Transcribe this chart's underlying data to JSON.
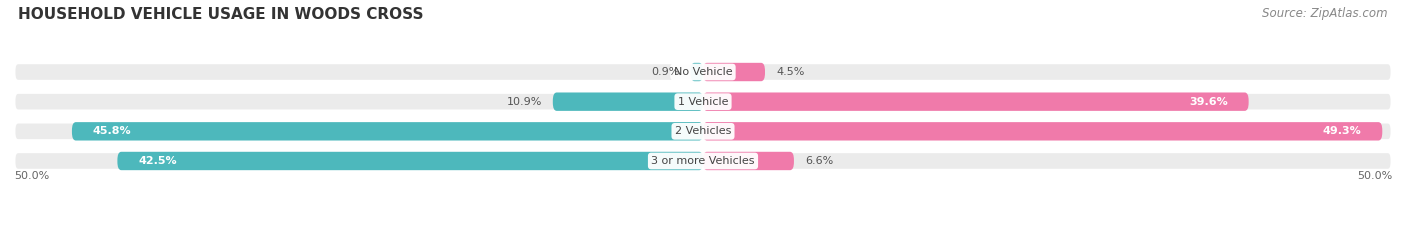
{
  "title": "HOUSEHOLD VEHICLE USAGE IN WOODS CROSS",
  "source": "Source: ZipAtlas.com",
  "categories": [
    "No Vehicle",
    "1 Vehicle",
    "2 Vehicles",
    "3 or more Vehicles"
  ],
  "owner_values": [
    0.9,
    10.9,
    45.8,
    42.5
  ],
  "renter_values": [
    4.5,
    39.6,
    49.3,
    6.6
  ],
  "owner_color": "#4db8bc",
  "renter_color": "#f07aaa",
  "axis_min": -50.0,
  "axis_max": 50.0,
  "axis_left_label": "50.0%",
  "axis_right_label": "50.0%",
  "background_color": "#ffffff",
  "bar_bg_color": "#ebebeb",
  "bar_height": 0.62,
  "title_fontsize": 11,
  "source_fontsize": 8.5,
  "label_fontsize": 8,
  "value_fontsize": 8,
  "inside_label_threshold": 15,
  "rounding_size": 0.28
}
